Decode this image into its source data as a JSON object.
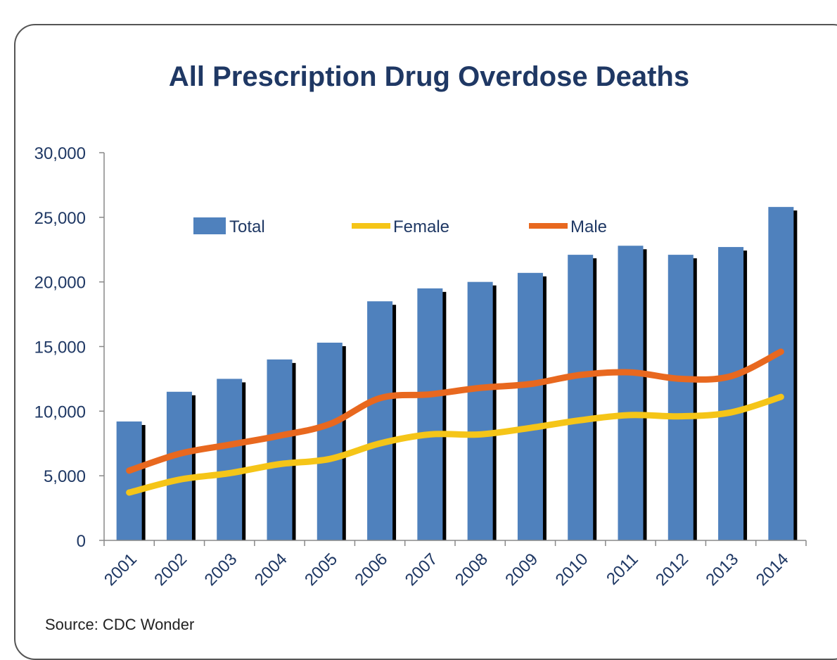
{
  "chart_data": {
    "type": "bar",
    "title": "All Prescription Drug Overdose Deaths",
    "source": "Source: CDC Wonder",
    "categories": [
      "2001",
      "2002",
      "2003",
      "2004",
      "2005",
      "2006",
      "2007",
      "2008",
      "2009",
      "2010",
      "2011",
      "2012",
      "2013",
      "2014"
    ],
    "series": [
      {
        "name": "Total",
        "kind": "bar",
        "color": "#4f81bd",
        "values": [
          9200,
          11500,
          12500,
          14000,
          15300,
          18500,
          19500,
          20000,
          20700,
          22100,
          22800,
          22100,
          22700,
          25800
        ]
      },
      {
        "name": "Female",
        "kind": "line",
        "color": "#f5c518",
        "values": [
          3700,
          4700,
          5200,
          5900,
          6300,
          7500,
          8200,
          8200,
          8700,
          9300,
          9700,
          9600,
          9900,
          11100
        ]
      },
      {
        "name": "Male",
        "kind": "line",
        "color": "#e8681f",
        "values": [
          5400,
          6700,
          7400,
          8100,
          9000,
          11000,
          11300,
          11800,
          12100,
          12800,
          13000,
          12500,
          12700,
          14600
        ]
      }
    ],
    "ylim": [
      0,
      30000
    ],
    "yticks": [
      0,
      5000,
      10000,
      15000,
      20000,
      25000,
      30000
    ],
    "ytick_labels": [
      "0",
      "5,000",
      "10,000",
      "15,000",
      "20,000",
      "25,000",
      "30,000"
    ],
    "grid": false,
    "legend_position": "top"
  }
}
